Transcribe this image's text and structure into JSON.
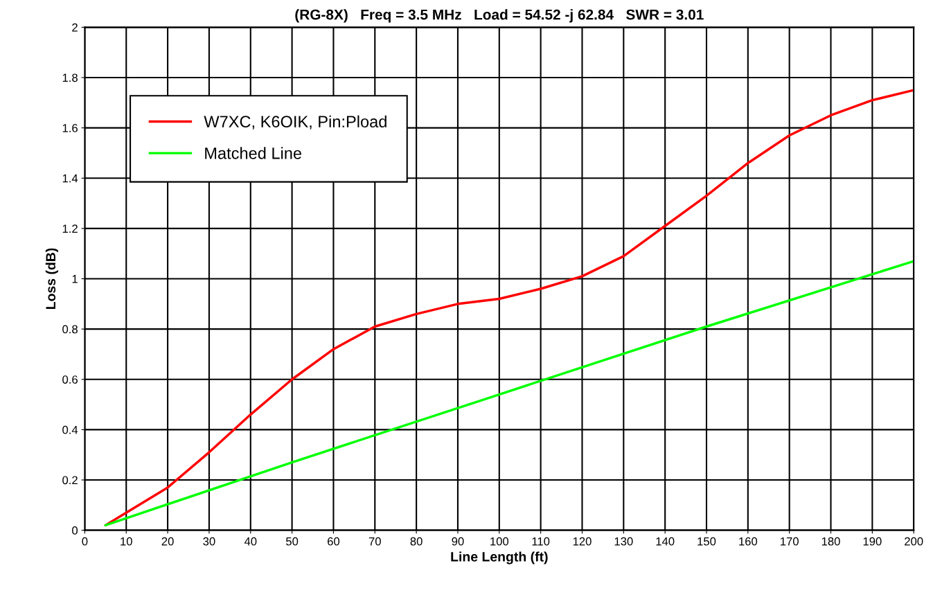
{
  "chart_data": {
    "type": "line",
    "title": "(RG-8X)   Freq = 3.5 MHz   Load = 54.52 -j 62.84   SWR = 3.01",
    "xlabel": "Line Length (ft)",
    "ylabel": "Loss (dB)",
    "series": [
      {
        "name": "W7XC, K6OIK, Pin:Pload",
        "color": "#ff0000",
        "x": [
          5,
          10,
          20,
          30,
          40,
          50,
          60,
          70,
          80,
          90,
          100,
          110,
          120,
          130,
          140,
          150,
          160,
          170,
          180,
          190,
          200
        ],
        "values": [
          0.02,
          0.07,
          0.17,
          0.31,
          0.46,
          0.6,
          0.72,
          0.81,
          0.86,
          0.9,
          0.92,
          0.96,
          1.01,
          1.09,
          1.21,
          1.33,
          1.46,
          1.57,
          1.65,
          1.71,
          1.75
        ]
      },
      {
        "name": "Matched Line",
        "color": "#00ff00",
        "x": [
          5,
          50,
          100,
          150,
          200
        ],
        "values": [
          0.02,
          0.27,
          0.54,
          0.81,
          1.07
        ]
      }
    ],
    "xlim": [
      0,
      200
    ],
    "xticks": [
      0,
      10,
      20,
      30,
      40,
      50,
      60,
      70,
      80,
      90,
      100,
      110,
      120,
      130,
      140,
      150,
      160,
      170,
      180,
      190,
      200
    ],
    "ylim": [
      0,
      2
    ],
    "yticks": [
      0,
      0.2,
      0.4,
      0.6,
      0.8,
      1,
      1.2,
      1.4,
      1.6,
      1.8,
      2
    ],
    "grid": true,
    "legend": "top left"
  }
}
